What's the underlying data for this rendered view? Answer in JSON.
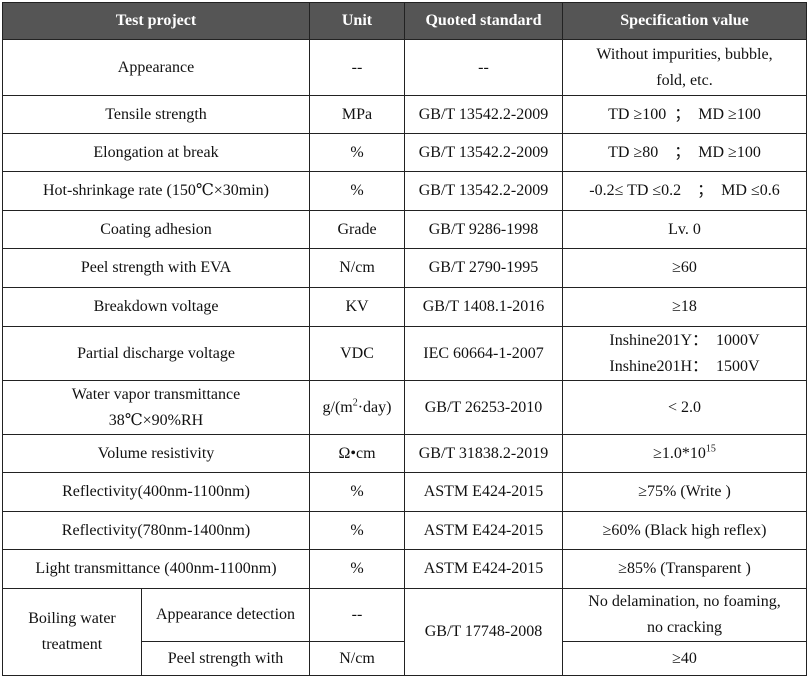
{
  "header": {
    "project": "Test project",
    "unit": "Unit",
    "standard": "Quoted standard",
    "spec": "Specification value"
  },
  "rows": [
    {
      "project": "Appearance",
      "unit": "--",
      "standard": "--",
      "spec1": "Without impurities, bubble,",
      "spec2": "fold, etc."
    },
    {
      "project": "Tensile strength",
      "unit": "MPa",
      "standard": "GB/T 13542.2-2009",
      "spec": "TD ≥100  ；  MD ≥100"
    },
    {
      "project": "Elongation at break",
      "unit": "%",
      "standard": "GB/T 13542.2-2009",
      "spec": "TD ≥80    ；  MD ≥100"
    },
    {
      "project": "Hot-shrinkage rate (150℃×30min)",
      "unit": "%",
      "standard": "GB/T 13542.2-2009",
      "spec": "-0.2≤ TD ≤0.2    ；  MD ≤0.6"
    },
    {
      "project": "Coating adhesion",
      "unit": "Grade",
      "standard": "GB/T 9286-1998",
      "spec": "Lv. 0"
    },
    {
      "project": "Peel strength with EVA",
      "unit": "N/cm",
      "standard": "GB/T 2790-1995",
      "spec": "≥60"
    },
    {
      "project": "Breakdown voltage",
      "unit": "KV",
      "standard": "GB/T 1408.1-2016",
      "spec": "≥18"
    },
    {
      "project": "Partial discharge voltage",
      "unit": "VDC",
      "standard": "IEC 60664-1-2007",
      "spec1": "Inshine201Y：  1000V",
      "spec2": "Inshine201H：  1500V"
    },
    {
      "project1": "Water vapor transmittance",
      "project2": "38℃×90%RH",
      "unit_base": "g/(m",
      "unit_sup": "2",
      "unit_tail": "·day)",
      "standard": "GB/T 26253-2010",
      "spec": "< 2.0"
    },
    {
      "project": "Volume resistivity",
      "unit": "Ω•cm",
      "standard": "GB/T 31838.2-2019",
      "spec_base": "≥1.0*10",
      "spec_sup": "15"
    },
    {
      "project": "Reflectivity(400nm-1100nm)",
      "unit": "%",
      "standard": "ASTM E424-2015",
      "spec": "≥75% (Write )"
    },
    {
      "project": "Reflectivity(780nm-1400nm)",
      "unit": "%",
      "standard": "ASTM E424-2015",
      "spec": "≥60% (Black high reflex)"
    },
    {
      "project": "Light transmittance (400nm-1100nm)",
      "unit": "%",
      "standard": "ASTM E424-2015",
      "spec": "≥85% (Transparent )"
    }
  ],
  "boiling": {
    "group1": "Boiling water",
    "group2": "treatment",
    "standard": "GB/T 17748-2008",
    "sub": [
      {
        "name": "Appearance detection",
        "unit": "--",
        "spec1": "No delamination, no foaming,",
        "spec2": "no cracking"
      },
      {
        "name": "Peel strength with",
        "unit": "N/cm",
        "spec": "≥40"
      }
    ]
  }
}
